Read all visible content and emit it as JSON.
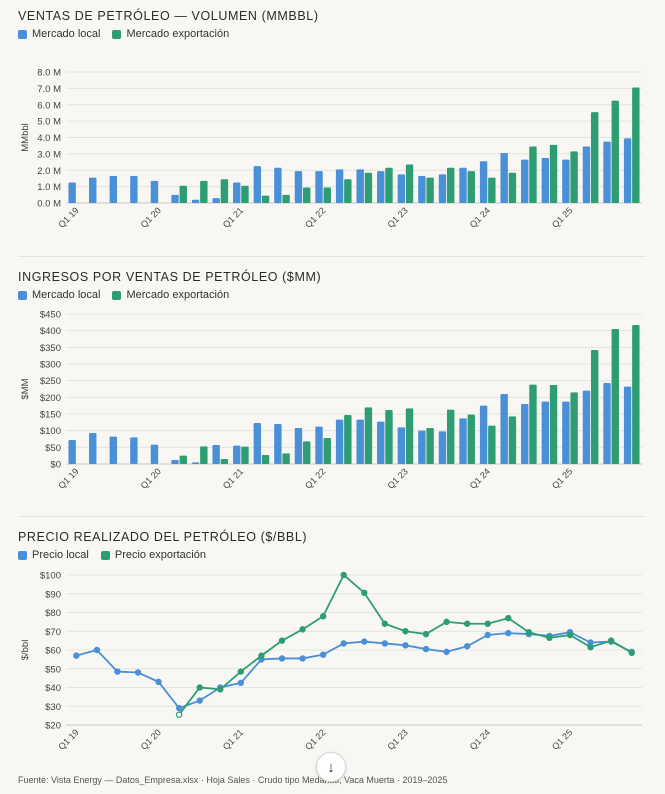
{
  "colors": {
    "local": "#4a90d9",
    "export": "#2e9e72"
  },
  "footer": "Fuente: Vista Energy — Datos_Empresa.xlsx · Hoja Sales · Crudo tipo Medanito, Vaca Muerta · 2019–2025",
  "scroll_icon": "arrow-down-icon",
  "charts": [
    {
      "title": "VENTAS DE PETRÓLEO — VOLUMEN (MMBBL)",
      "legend": [
        "Mercado local",
        "Mercado exportación"
      ],
      "ylabel": "MMbbl"
    },
    {
      "title": "INGRESOS POR VENTAS DE PETRÓLEO ($MM)",
      "legend": [
        "Mercado local",
        "Mercado exportación"
      ],
      "ylabel": "$MM"
    },
    {
      "title": "PRECIO REALIZADO DEL PETRÓLEO ($/BBL)",
      "legend": [
        "Precio local",
        "Precio exportación"
      ],
      "ylabel": "$/bbl"
    }
  ],
  "chart_data": [
    {
      "type": "bar",
      "title": "VENTAS DE PETRÓLEO — VOLUMEN (MMBBL)",
      "ylabel": "MMbbl",
      "ylim": [
        0,
        8
      ],
      "yticks": [
        0,
        1,
        2,
        3,
        4,
        5,
        6,
        7,
        8
      ],
      "ytick_labels": [
        "0.0 M",
        "1.0 M",
        "2.0 M",
        "3.0 M",
        "4.0 M",
        "5.0 M",
        "6.0 M",
        "7.0 M",
        "8.0 M"
      ],
      "categories": [
        "Q1 19",
        "Q2 19",
        "Q3 19",
        "Q4 19",
        "Q1 20",
        "Q2 20",
        "Q3 20",
        "Q4 20",
        "Q1 21",
        "Q2 21",
        "Q3 21",
        "Q4 21",
        "Q1 22",
        "Q2 22",
        "Q3 22",
        "Q4 22",
        "Q1 23",
        "Q2 23",
        "Q3 23",
        "Q4 23",
        "Q1 24",
        "Q2 24",
        "Q3 24",
        "Q4 24",
        "Q1 25",
        "Q2 25",
        "Q3 25",
        "Q4 25"
      ],
      "xtick_labels": [
        "Q1 19",
        "",
        "",
        "",
        "Q1 20",
        "",
        "",
        "",
        "Q1 21",
        "",
        "",
        "",
        "Q1 22",
        "",
        "",
        "",
        "Q1 23",
        "",
        "",
        "",
        "Q1 24",
        "",
        "",
        "",
        "Q1 25",
        "",
        "",
        ""
      ],
      "grid": true,
      "legend_position": "top-left",
      "series": [
        {
          "name": "Mercado local",
          "values": [
            1.25,
            1.55,
            1.65,
            1.65,
            1.35,
            0.5,
            0.2,
            0.3,
            1.25,
            2.25,
            2.15,
            1.95,
            1.95,
            2.05,
            2.05,
            1.95,
            1.75,
            1.65,
            1.75,
            2.15,
            2.55,
            3.05,
            2.65,
            2.75,
            2.65,
            3.45,
            3.75,
            3.95
          ]
        },
        {
          "name": "Mercado exportación",
          "values": [
            0,
            0,
            0,
            0,
            0,
            1.05,
            1.35,
            1.45,
            1.05,
            0.45,
            0.5,
            0.95,
            0.95,
            1.45,
            1.85,
            2.15,
            2.35,
            1.55,
            2.15,
            1.95,
            1.55,
            1.85,
            3.45,
            3.55,
            3.15,
            5.55,
            6.25,
            7.05
          ]
        }
      ]
    },
    {
      "type": "bar",
      "title": "INGRESOS POR VENTAS DE PETRÓLEO ($MM)",
      "ylabel": "$MM",
      "ylim": [
        0,
        450
      ],
      "yticks": [
        0,
        50,
        100,
        150,
        200,
        250,
        300,
        350,
        400,
        450
      ],
      "ytick_labels": [
        "$0",
        "$50",
        "$100",
        "$150",
        "$200",
        "$250",
        "$300",
        "$350",
        "$400",
        "$450"
      ],
      "categories": [
        "Q1 19",
        "Q2 19",
        "Q3 19",
        "Q4 19",
        "Q1 20",
        "Q2 20",
        "Q3 20",
        "Q4 20",
        "Q1 21",
        "Q2 21",
        "Q3 21",
        "Q4 21",
        "Q1 22",
        "Q2 22",
        "Q3 22",
        "Q4 22",
        "Q1 23",
        "Q2 23",
        "Q3 23",
        "Q4 23",
        "Q1 24",
        "Q2 24",
        "Q3 24",
        "Q4 24",
        "Q1 25",
        "Q2 25",
        "Q3 25",
        "Q4 25"
      ],
      "xtick_labels": [
        "Q1 19",
        "",
        "",
        "",
        "Q1 20",
        "",
        "",
        "",
        "Q1 21",
        "",
        "",
        "",
        "Q1 22",
        "",
        "",
        "",
        "Q1 23",
        "",
        "",
        "",
        "Q1 24",
        "",
        "",
        "",
        "Q1 25",
        "",
        "",
        ""
      ],
      "grid": true,
      "legend_position": "top-left",
      "series": [
        {
          "name": "Mercado local",
          "values": [
            72,
            93,
            82,
            80,
            58,
            12,
            5,
            57,
            55,
            123,
            120,
            108,
            112,
            133,
            133,
            127,
            110,
            100,
            98,
            137,
            175,
            210,
            180,
            187,
            187,
            220,
            243,
            232
          ]
        },
        {
          "name": "Mercado exportación",
          "values": [
            0,
            0,
            0,
            0,
            0,
            25,
            53,
            15,
            52,
            27,
            32,
            68,
            78,
            147,
            170,
            162,
            167,
            108,
            163,
            148,
            115,
            143,
            238,
            237,
            215,
            342,
            405,
            417
          ]
        }
      ]
    },
    {
      "type": "line",
      "title": "PRECIO REALIZADO DEL PETRÓLEO ($/BBL)",
      "ylabel": "$/bbl",
      "ylim": [
        20,
        100
      ],
      "yticks": [
        20,
        30,
        40,
        50,
        60,
        70,
        80,
        90,
        100
      ],
      "ytick_labels": [
        "$20",
        "$30",
        "$40",
        "$50",
        "$60",
        "$70",
        "$80",
        "$90",
        "$100"
      ],
      "x": [
        "Q1 19",
        "Q2 19",
        "Q3 19",
        "Q4 19",
        "Q1 20",
        "Q2 20",
        "Q3 20",
        "Q4 20",
        "Q1 21",
        "Q2 21",
        "Q3 21",
        "Q4 21",
        "Q1 22",
        "Q2 22",
        "Q3 22",
        "Q4 22",
        "Q1 23",
        "Q2 23",
        "Q3 23",
        "Q4 23",
        "Q1 24",
        "Q2 24",
        "Q3 24",
        "Q4 24",
        "Q1 25",
        "Q2 25",
        "Q3 25",
        "Q4 25"
      ],
      "xtick_labels": [
        "Q1 19",
        "",
        "",
        "",
        "Q1 20",
        "",
        "",
        "",
        "Q1 21",
        "",
        "",
        "",
        "Q1 22",
        "",
        "",
        "",
        "Q1 23",
        "",
        "",
        "",
        "Q1 24",
        "",
        "",
        "",
        "Q1 25",
        "",
        "",
        ""
      ],
      "grid": true,
      "legend_position": "top-left",
      "series": [
        {
          "name": "Precio local",
          "values": [
            57,
            60,
            48.5,
            48,
            43,
            29,
            33,
            40,
            42.5,
            55,
            55.5,
            55.5,
            57.5,
            63.5,
            64.5,
            63.5,
            62.5,
            60.5,
            59,
            62,
            68,
            69,
            68.5,
            67.5,
            69.5,
            64,
            64.5,
            59
          ]
        },
        {
          "name": "Precio exportación",
          "values": [
            null,
            null,
            null,
            null,
            null,
            25.5,
            40,
            39,
            48.5,
            57,
            65,
            71,
            78,
            100,
            90.5,
            74,
            70,
            68.5,
            75,
            74,
            74,
            77,
            69.5,
            66.5,
            68,
            61.5,
            65,
            58.5
          ]
        }
      ]
    }
  ]
}
